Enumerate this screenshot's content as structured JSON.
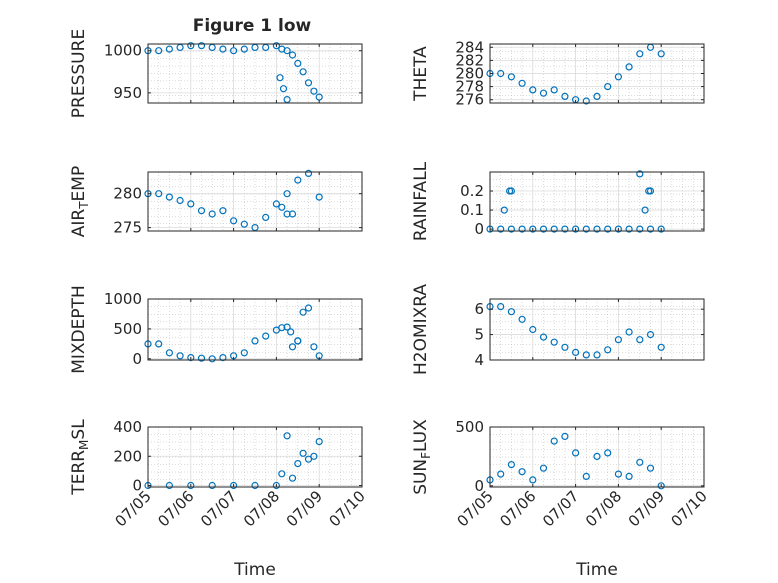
{
  "figure": {
    "title": "Figure 1 low",
    "background": "#ffffff"
  },
  "colors": {
    "marker": "#0072bd",
    "axes": "#262626",
    "grid": "#b8b8b8"
  },
  "chart_data": [
    {
      "type": "scatter",
      "ylabel": "PRESSURE",
      "xlabel": "",
      "title": "Figure 1 low",
      "xlim": [
        "07/05",
        "07/10"
      ],
      "ylim": [
        938,
        1008
      ],
      "yticks": [
        950,
        1000
      ],
      "xticks": [
        "07/05",
        "07/06",
        "07/07",
        "07/08",
        "07/09",
        "07/10"
      ],
      "show_xticklabels": false,
      "grid": true,
      "series": [
        {
          "x": [
            "07/05 00:00",
            "07/05 06:00",
            "07/05 12:00",
            "07/05 18:00",
            "07/06 00:00",
            "07/06 06:00",
            "07/06 12:00",
            "07/06 18:00",
            "07/07 00:00",
            "07/07 06:00",
            "07/07 12:00",
            "07/07 18:00",
            "07/08 00:00",
            "07/08 03:00",
            "07/08 06:00",
            "07/08 09:00",
            "07/08 12:00",
            "07/08 15:00",
            "07/08 18:00",
            "07/08 21:00",
            "07/09 00:00",
            "07/08 02:00",
            "07/08 04:00",
            "07/08 06:00"
          ],
          "y": [
            1000,
            1000,
            1002,
            1004,
            1006,
            1006,
            1004,
            1002,
            1000,
            1002,
            1004,
            1004,
            1006,
            1002,
            1000,
            995,
            985,
            975,
            962,
            952,
            945,
            968,
            955,
            942
          ]
        }
      ]
    },
    {
      "type": "scatter",
      "ylabel": "THETA",
      "xlabel": "",
      "xlim": [
        "07/05",
        "07/10"
      ],
      "ylim": [
        275.5,
        284.5
      ],
      "yticks": [
        276,
        278,
        280,
        282,
        284
      ],
      "xticks": [
        "07/05",
        "07/06",
        "07/07",
        "07/08",
        "07/09",
        "07/10"
      ],
      "show_xticklabels": false,
      "grid": true,
      "series": [
        {
          "x": [
            "07/05 00:00",
            "07/05 06:00",
            "07/05 12:00",
            "07/05 18:00",
            "07/06 00:00",
            "07/06 06:00",
            "07/06 12:00",
            "07/06 18:00",
            "07/07 00:00",
            "07/07 06:00",
            "07/07 12:00",
            "07/07 18:00",
            "07/08 00:00",
            "07/08 06:00",
            "07/08 12:00",
            "07/08 18:00",
            "07/09 00:00"
          ],
          "y": [
            280,
            280,
            279.5,
            278.5,
            277.5,
            277,
            277.5,
            276.5,
            276,
            275.8,
            276.5,
            278,
            279.5,
            281,
            283,
            284,
            283
          ]
        }
      ]
    },
    {
      "type": "scatter",
      "ylabel": "AIR_TEMP",
      "xlabel": "",
      "xlim": [
        "07/05",
        "07/10"
      ],
      "ylim": [
        274.5,
        283.2
      ],
      "yticks": [
        275,
        280
      ],
      "xticks": [
        "07/05",
        "07/06",
        "07/07",
        "07/08",
        "07/09",
        "07/10"
      ],
      "show_xticklabels": false,
      "grid": true,
      "series": [
        {
          "x": [
            "07/05 00:00",
            "07/05 06:00",
            "07/05 12:00",
            "07/05 18:00",
            "07/06 00:00",
            "07/06 06:00",
            "07/06 12:00",
            "07/06 18:00",
            "07/07 00:00",
            "07/07 06:00",
            "07/07 12:00",
            "07/07 18:00",
            "07/08 00:00",
            "07/08 06:00",
            "07/08 12:00",
            "07/08 18:00",
            "07/09 00:00",
            "07/08 03:00",
            "07/08 06:00",
            "07/08 09:00"
          ],
          "y": [
            280,
            280,
            279.5,
            279,
            278.5,
            277.5,
            277,
            277.5,
            276,
            275.5,
            275,
            276.5,
            278.5,
            280,
            282,
            283,
            279.5,
            278,
            277,
            277
          ]
        }
      ]
    },
    {
      "type": "scatter",
      "ylabel": "RAINFALL",
      "xlabel": "",
      "xlim": [
        "07/05",
        "07/10"
      ],
      "ylim": [
        -0.01,
        0.3
      ],
      "yticks": [
        0,
        0.1,
        0.2
      ],
      "xticks": [
        "07/05",
        "07/06",
        "07/07",
        "07/08",
        "07/09",
        "07/10"
      ],
      "show_xticklabels": false,
      "grid": true,
      "series": [
        {
          "x": [
            "07/05 00:00",
            "07/05 06:00",
            "07/05 12:00",
            "07/05 18:00",
            "07/06 00:00",
            "07/06 06:00",
            "07/06 12:00",
            "07/06 18:00",
            "07/07 00:00",
            "07/07 06:00",
            "07/07 12:00",
            "07/07 18:00",
            "07/08 00:00",
            "07/08 06:00",
            "07/08 12:00",
            "07/08 18:00",
            "07/09 00:00",
            "07/05 08:00",
            "07/05 11:00",
            "07/05 12:00",
            "07/08 12:00",
            "07/08 15:00",
            "07/08 17:00",
            "07/08 18:00"
          ],
          "y": [
            0,
            0,
            0,
            0,
            0,
            0,
            0,
            0,
            0,
            0,
            0,
            0,
            0,
            0,
            0,
            0,
            0,
            0.1,
            0.2,
            0.2,
            0.29,
            0.1,
            0.2,
            0.2
          ]
        }
      ]
    },
    {
      "type": "scatter",
      "ylabel": "MIXDEPTH",
      "xlabel": "",
      "xlim": [
        "07/05",
        "07/10"
      ],
      "ylim": [
        -20,
        1000
      ],
      "yticks": [
        0,
        500,
        1000
      ],
      "xticks": [
        "07/05",
        "07/06",
        "07/07",
        "07/08",
        "07/09",
        "07/10"
      ],
      "show_xticklabels": false,
      "grid": true,
      "series": [
        {
          "x": [
            "07/05 00:00",
            "07/05 06:00",
            "07/05 12:00",
            "07/05 18:00",
            "07/06 00:00",
            "07/06 06:00",
            "07/06 12:00",
            "07/06 18:00",
            "07/07 00:00",
            "07/07 06:00",
            "07/07 12:00",
            "07/07 18:00",
            "07/08 00:00",
            "07/08 03:00",
            "07/08 06:00",
            "07/08 09:00",
            "07/08 12:00",
            "07/08 15:00",
            "07/08 18:00",
            "07/08 21:00",
            "07/09 00:00",
            "07/08 08:00",
            "07/08 12:00"
          ],
          "y": [
            250,
            250,
            100,
            50,
            20,
            10,
            0,
            20,
            50,
            100,
            300,
            380,
            480,
            520,
            530,
            200,
            300,
            780,
            850,
            200,
            50,
            450,
            300
          ]
        }
      ]
    },
    {
      "type": "scatter",
      "ylabel": "H2OMIXRA",
      "xlabel": "",
      "xlim": [
        "07/05",
        "07/10"
      ],
      "ylim": [
        4,
        6.4
      ],
      "yticks": [
        4,
        5,
        6
      ],
      "xticks": [
        "07/05",
        "07/06",
        "07/07",
        "07/08",
        "07/09",
        "07/10"
      ],
      "show_xticklabels": false,
      "grid": true,
      "series": [
        {
          "x": [
            "07/05 00:00",
            "07/05 06:00",
            "07/05 12:00",
            "07/05 18:00",
            "07/06 00:00",
            "07/06 06:00",
            "07/06 12:00",
            "07/06 18:00",
            "07/07 00:00",
            "07/07 06:00",
            "07/07 12:00",
            "07/07 18:00",
            "07/08 00:00",
            "07/08 06:00",
            "07/08 12:00",
            "07/08 18:00",
            "07/09 00:00"
          ],
          "y": [
            6.1,
            6.1,
            5.9,
            5.6,
            5.2,
            4.9,
            4.7,
            4.5,
            4.3,
            4.2,
            4.2,
            4.4,
            4.8,
            5.1,
            4.8,
            5,
            4.5
          ]
        }
      ]
    },
    {
      "type": "scatter",
      "ylabel": "TERR_MSL",
      "xlabel": "Time",
      "xlim": [
        "07/05",
        "07/10"
      ],
      "ylim": [
        -10,
        400
      ],
      "yticks": [
        0,
        200,
        400
      ],
      "xticks": [
        "07/05",
        "07/06",
        "07/07",
        "07/08",
        "07/09",
        "07/10"
      ],
      "show_xticklabels": true,
      "grid": true,
      "series": [
        {
          "x": [
            "07/05 00:00",
            "07/05 12:00",
            "07/06 00:00",
            "07/06 12:00",
            "07/07 00:00",
            "07/07 12:00",
            "07/08 00:00",
            "07/08 03:00",
            "07/08 06:00",
            "07/08 09:00",
            "07/08 12:00",
            "07/08 15:00",
            "07/08 18:00",
            "07/08 21:00",
            "07/09 00:00"
          ],
          "y": [
            0,
            0,
            0,
            0,
            0,
            0,
            0,
            80,
            340,
            50,
            150,
            220,
            180,
            200,
            300
          ]
        }
      ]
    },
    {
      "type": "scatter",
      "ylabel": "SUN_FLUX",
      "xlabel": "Time",
      "xlim": [
        "07/05",
        "07/10"
      ],
      "ylim": [
        -10,
        500
      ],
      "yticks": [
        0,
        500
      ],
      "xticks": [
        "07/05",
        "07/06",
        "07/07",
        "07/08",
        "07/09",
        "07/10"
      ],
      "show_xticklabels": true,
      "grid": true,
      "series": [
        {
          "x": [
            "07/05 00:00",
            "07/05 06:00",
            "07/05 12:00",
            "07/05 18:00",
            "07/06 00:00",
            "07/06 06:00",
            "07/06 12:00",
            "07/06 18:00",
            "07/07 00:00",
            "07/07 06:00",
            "07/07 12:00",
            "07/07 18:00",
            "07/08 00:00",
            "07/08 06:00",
            "07/08 12:00",
            "07/08 18:00",
            "07/09 00:00"
          ],
          "y": [
            50,
            100,
            180,
            120,
            50,
            150,
            380,
            420,
            280,
            80,
            250,
            280,
            100,
            80,
            200,
            150,
            0
          ]
        }
      ]
    }
  ]
}
